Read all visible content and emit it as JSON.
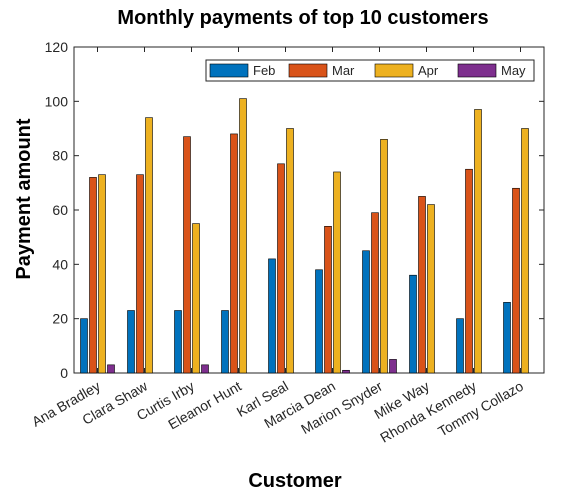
{
  "chart_data": {
    "type": "bar",
    "title": "Monthly payments of top 10 customers",
    "xlabel": "Customer",
    "ylabel": "Payment amount",
    "ylim": [
      0,
      120
    ],
    "yticks": [
      0,
      20,
      40,
      60,
      80,
      100,
      120
    ],
    "grid": false,
    "legend_position": "top-right",
    "categories": [
      "Ana Bradley",
      "Clara Shaw",
      "Curtis Irby",
      "Eleanor Hunt",
      "Karl Seal",
      "Marcia Dean",
      "Marion Snyder",
      "Mike Way",
      "Rhonda Kennedy",
      "Tommy Collazo"
    ],
    "series": [
      {
        "name": "Feb",
        "color": "#0072BD",
        "values": [
          20,
          23,
          23,
          23,
          42,
          38,
          45,
          36,
          20,
          26
        ]
      },
      {
        "name": "Mar",
        "color": "#D95319",
        "values": [
          72,
          73,
          87,
          88,
          77,
          54,
          59,
          65,
          75,
          68
        ]
      },
      {
        "name": "Apr",
        "color": "#EDB120",
        "values": [
          73,
          94,
          55,
          101,
          90,
          74,
          86,
          62,
          97,
          90
        ]
      },
      {
        "name": "May",
        "color": "#7E2F8E",
        "values": [
          3,
          0,
          3,
          0,
          0,
          1,
          5,
          0,
          0,
          0
        ]
      }
    ]
  }
}
